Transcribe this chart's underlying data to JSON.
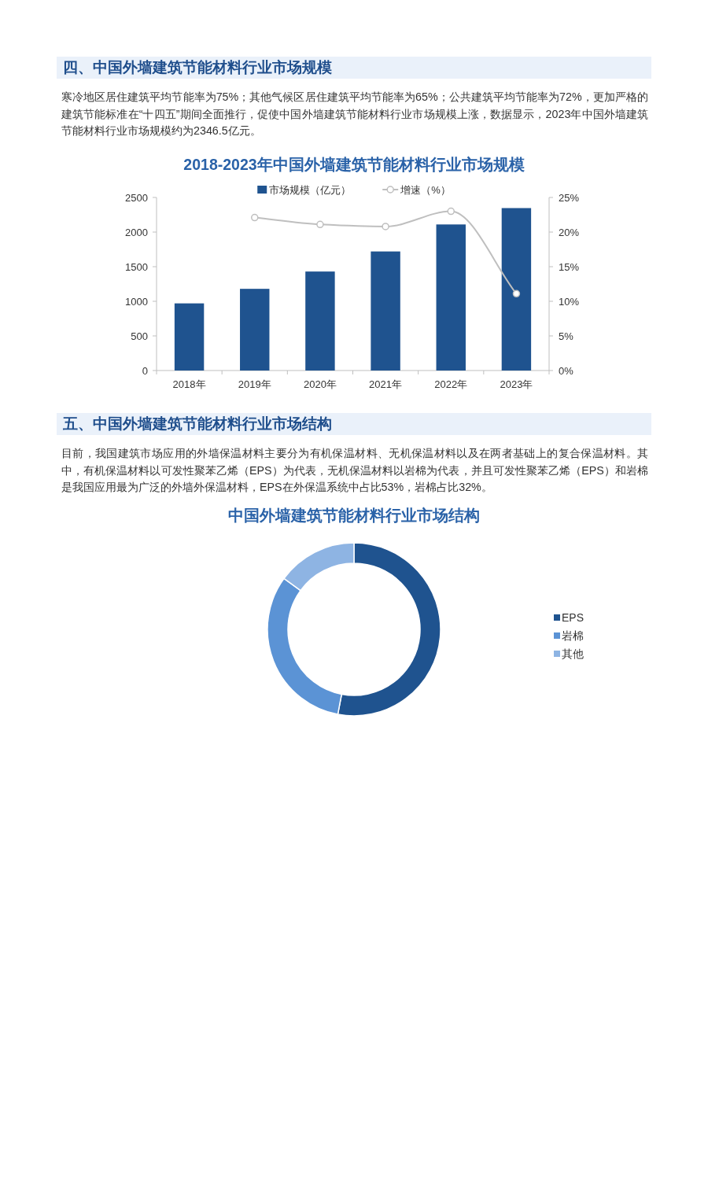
{
  "chart_data": [
    {
      "type": "bar",
      "title": "2018-2023年中国外墙建筑节能材料行业市场规模",
      "annotations": [
        "四、中国外墙建筑节能材料行业市场规模",
        "寒冷地区居住建筑平均节能率为75%；其他气候区居住建筑平均节能率为65%；公共建筑平均节能率为72%，更加严格的建筑节能标准在“十四五”期间全面推行，促使中国外墙建筑节能材料行业市场规模上涨，数据显示，2023年中国外墙建筑节能材料行业市场规模约为2346.5亿元。"
      ],
      "categories": [
        "2018年",
        "2019年",
        "2020年",
        "2021年",
        "2022年",
        "2023年"
      ],
      "series": [
        {
          "name": "市场规模（亿元）",
          "color": "#1f538f",
          "values": [
            970,
            1180,
            1430,
            1720,
            2110,
            2346.5
          ]
        },
        {
          "name": "增速（%）",
          "type": "line",
          "axis": "y2",
          "color": "#bfbfbf",
          "marker": "circle",
          "values": [
            null,
            22.1,
            21.1,
            20.8,
            23.0,
            11.1
          ]
        }
      ],
      "ylim": [
        0,
        2500
      ],
      "yticks": [
        0,
        500,
        1000,
        1500,
        2000,
        2500
      ],
      "y2lim": [
        0,
        25
      ],
      "y2ticks": [
        {
          "value": 0,
          "label": "0%"
        },
        {
          "value": 5,
          "label": "5%"
        },
        {
          "value": 10,
          "label": "10%"
        },
        {
          "value": 15,
          "label": "15%"
        },
        {
          "value": 20,
          "label": "20%"
        },
        {
          "value": 25,
          "label": "25%"
        }
      ],
      "legend": "top",
      "grid": false
    },
    {
      "type": "donut",
      "title": "中国外墙建筑节能材料行业市场结构",
      "annotations": [
        "五、中国外墙建筑节能材料行业市场结构",
        "目前，我国建筑市场应用的外墙保温材料主要分为有机保温材料、无机保温材料以及在两者基础上的复合保温材料。其中，有机保温材料以可发性聚苯乙烯（EPS）为代表，无机保温材料以岩棉为代表，并且可发性聚苯乙烯（EPS）和岩棉是我国应用最为广泛的外墙外保温材料，EPS在外保温系统中占比53%，岩棉占比32%。"
      ],
      "categories": [
        "EPS",
        "岩棉",
        "其他"
      ],
      "values": [
        53,
        32,
        15
      ],
      "colors": [
        "#1f538f",
        "#5b93d5",
        "#8eb4e3"
      ],
      "legend": "right"
    }
  ]
}
